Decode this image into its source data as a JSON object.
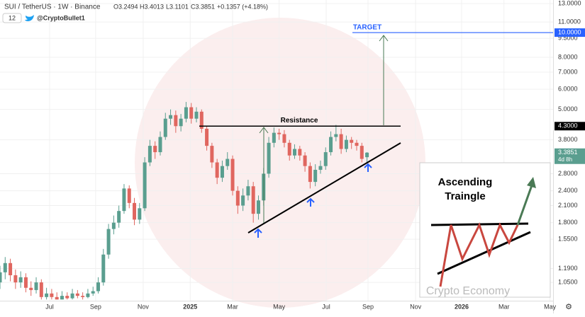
{
  "header": {
    "symbol": "SUI / TetherUS · 1W · Binance",
    "open": "O3.2494",
    "high": "H3.4013",
    "low": "L3.1101",
    "close": "C3.3851",
    "change": "+0.1357 (+4.18%)",
    "count": "12",
    "author": "@CryptoBullet1"
  },
  "chart_data": {
    "type": "candlestick",
    "up_color": "#5a9e8f",
    "down_color": "#e0665f",
    "series": {
      "open": [
        1.05,
        1.15,
        1.25,
        1.12,
        1.05,
        1.1,
        1.0,
        0.98,
        1.05,
        0.92,
        0.95,
        0.92,
        0.9,
        0.93,
        0.91,
        0.95,
        0.93,
        0.92,
        0.95,
        0.97,
        1.05,
        1.35,
        1.7,
        1.8,
        2.0,
        2.45,
        2.15,
        1.85,
        2.05,
        3.1,
        3.6,
        3.4,
        3.9,
        4.6,
        4.75,
        4.3,
        4.6,
        5.1,
        4.6,
        4.9,
        4.2,
        3.6,
        3.1,
        2.7,
        3.0,
        3.2,
        2.4,
        2.1,
        2.3,
        2.5,
        1.95,
        2.2,
        2.8,
        3.7,
        4.05,
        4.0,
        3.7,
        3.3,
        3.5,
        3.3,
        3.0,
        2.6,
        2.9,
        3.0,
        3.4,
        3.9,
        4.0,
        3.5,
        3.8,
        3.7,
        3.6,
        3.2494
      ],
      "high": [
        1.22,
        1.32,
        1.3,
        1.18,
        1.16,
        1.14,
        1.06,
        1.1,
        1.08,
        1.0,
        0.99,
        0.96,
        0.97,
        0.96,
        0.99,
        0.98,
        0.96,
        0.99,
        1.01,
        1.1,
        1.42,
        1.78,
        1.92,
        2.1,
        2.55,
        2.52,
        2.25,
        2.15,
        3.25,
        3.8,
        3.75,
        4.1,
        4.85,
        5.0,
        4.95,
        4.8,
        5.35,
        5.3,
        5.1,
        5.0,
        4.3,
        3.7,
        3.2,
        3.15,
        3.4,
        3.3,
        2.5,
        2.45,
        2.65,
        2.6,
        2.3,
        2.95,
        3.9,
        4.25,
        4.2,
        4.15,
        3.8,
        3.65,
        3.6,
        3.4,
        3.1,
        3.05,
        3.15,
        3.55,
        4.1,
        4.35,
        4.2,
        3.95,
        3.9,
        3.8,
        3.7,
        3.4013
      ],
      "low": [
        0.99,
        1.08,
        1.06,
        0.99,
        1.0,
        0.96,
        0.93,
        0.95,
        0.9,
        0.9,
        0.9,
        0.9,
        0.9,
        0.9,
        0.9,
        0.91,
        0.9,
        0.91,
        0.93,
        0.95,
        1.02,
        1.3,
        1.62,
        1.72,
        1.95,
        2.05,
        1.76,
        1.78,
        2.0,
        3.0,
        3.2,
        3.3,
        3.8,
        4.35,
        4.05,
        4.1,
        4.45,
        4.4,
        4.45,
        4.05,
        3.45,
        2.95,
        2.55,
        2.6,
        2.9,
        2.3,
        1.95,
        2.0,
        2.2,
        1.8,
        1.85,
        2.1,
        2.7,
        3.55,
        3.8,
        3.55,
        3.15,
        3.2,
        3.15,
        2.85,
        2.45,
        2.5,
        2.8,
        2.9,
        3.3,
        3.75,
        3.35,
        3.4,
        3.5,
        3.45,
        3.1,
        3.1101
      ],
      "close": [
        1.15,
        1.25,
        1.12,
        1.05,
        1.1,
        1.0,
        0.98,
        1.05,
        0.92,
        0.95,
        0.92,
        0.9,
        0.93,
        0.91,
        0.95,
        0.93,
        0.92,
        0.95,
        0.97,
        1.05,
        1.35,
        1.7,
        1.8,
        2.0,
        2.45,
        2.15,
        1.85,
        2.05,
        3.1,
        3.6,
        3.4,
        3.9,
        4.6,
        4.75,
        4.3,
        4.6,
        5.1,
        4.6,
        4.9,
        4.2,
        3.6,
        3.1,
        2.7,
        3.0,
        3.2,
        2.4,
        2.1,
        2.3,
        2.5,
        1.95,
        2.2,
        2.8,
        3.7,
        4.05,
        4.0,
        3.7,
        3.3,
        3.5,
        3.3,
        3.0,
        2.6,
        2.9,
        3.0,
        3.4,
        3.9,
        4.0,
        3.5,
        3.8,
        3.7,
        3.6,
        3.2,
        3.3851
      ]
    },
    "xlim": [
      0,
      107
    ],
    "xticks": [
      {
        "value": 9.6,
        "label": "Jul"
      },
      {
        "value": 18.5,
        "label": "Sep"
      },
      {
        "value": 27.7,
        "label": "Nov"
      },
      {
        "value": 36.8,
        "label": "2025"
      },
      {
        "value": 45,
        "label": "Mar"
      },
      {
        "value": 54,
        "label": "May"
      },
      {
        "value": 63.1,
        "label": "Jul"
      },
      {
        "value": 71.2,
        "label": "Sep"
      },
      {
        "value": 80.4,
        "label": "Nov"
      },
      {
        "value": 89.3,
        "label": "2026"
      },
      {
        "value": 97.5,
        "label": "Mar"
      },
      {
        "value": 106.4,
        "label": "May"
      }
    ],
    "ylim": [
      0.89,
      13.42
    ],
    "log_y": true,
    "yticks": [
      {
        "value": 13,
        "label": "13.0000"
      },
      {
        "value": 11,
        "label": "11.0000"
      },
      {
        "value": 9.5,
        "label": "9.5000"
      },
      {
        "value": 8,
        "label": "8.0000"
      },
      {
        "value": 7,
        "label": "7.0000"
      },
      {
        "value": 6,
        "label": "6.0000"
      },
      {
        "value": 5,
        "label": "5.0000"
      },
      {
        "value": 3.8,
        "label": "3.8000"
      },
      {
        "value": 2.8,
        "label": "2.8000"
      },
      {
        "value": 2.4,
        "label": "2.4000"
      },
      {
        "value": 2.1,
        "label": "2.1000"
      },
      {
        "value": 1.8,
        "label": "1.8000"
      },
      {
        "value": 1.55,
        "label": "1.5500"
      },
      {
        "value": 1.19,
        "label": "1.1900"
      },
      {
        "value": 1.05,
        "label": "1.0500"
      }
    ],
    "levels": [
      {
        "value": 10,
        "label": "10.0000",
        "name": "TARGET",
        "color": "#2962ff"
      },
      {
        "value": 4.3,
        "label": "4.3000",
        "name": "Resistance",
        "color": "#000000"
      }
    ],
    "last_price": 3.3851,
    "countdown": "4d 8h",
    "inset": {
      "title_1": "Ascending",
      "title_2": "Traingle"
    },
    "watermark": "Crypto Economy"
  }
}
